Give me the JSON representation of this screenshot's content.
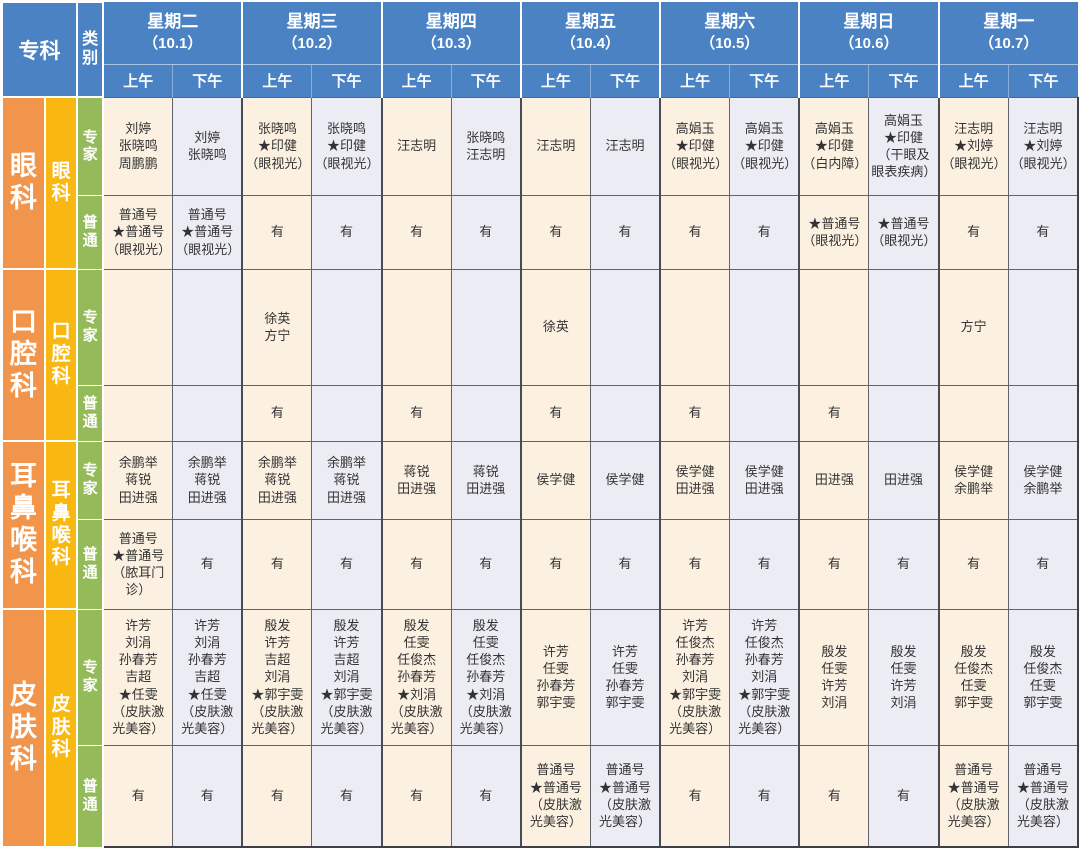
{
  "header": {
    "specialty_label": "专科",
    "category_label": "类别",
    "am_label": "上午",
    "pm_label": "下午",
    "days": [
      {
        "name": "星期二",
        "date": "（10.1）"
      },
      {
        "name": "星期三",
        "date": "（10.2）"
      },
      {
        "name": "星期四",
        "date": "（10.3）"
      },
      {
        "name": "星期五",
        "date": "（10.4）"
      },
      {
        "name": "星期六",
        "date": "（10.5）"
      },
      {
        "name": "星期日",
        "date": "（10.6）"
      },
      {
        "name": "星期一",
        "date": "（10.7）"
      }
    ]
  },
  "sections": [
    {
      "name": "眼科",
      "rows": [
        {
          "category": "专家",
          "cells": [
            "刘婷\n张晓鸣\n周鹏鹏",
            "刘婷\n张晓鸣",
            "张晓鸣\n★印健\n（眼视光）",
            "张晓鸣\n★印健\n（眼视光）",
            "汪志明",
            "张晓鸣\n汪志明",
            "汪志明",
            "汪志明",
            "高娟玉\n★印健\n（眼视光）",
            "高娟玉\n★印健\n（眼视光）",
            "高娟玉\n★印健\n（白内障）",
            "高娟玉\n★印健\n（干眼及眼表疾病）",
            "汪志明\n★刘婷\n（眼视光）",
            "汪志明\n★刘婷\n（眼视光）"
          ]
        },
        {
          "category": "普通",
          "cells": [
            "普通号\n★普通号\n（眼视光）",
            "普通号\n★普通号\n（眼视光）",
            "有",
            "有",
            "有",
            "有",
            "有",
            "有",
            "有",
            "有",
            "★普通号\n（眼视光）",
            "★普通号\n（眼视光）",
            "有",
            "有"
          ]
        }
      ]
    },
    {
      "name": "口腔科",
      "rows": [
        {
          "category": "专家",
          "cells": [
            "",
            "",
            "徐英\n方宁",
            "",
            "",
            "",
            "徐英",
            "",
            "",
            "",
            "",
            "",
            "方宁",
            ""
          ]
        },
        {
          "category": "普通",
          "cells": [
            "",
            "",
            "有",
            "",
            "有",
            "",
            "有",
            "",
            "有",
            "",
            "有",
            "",
            "",
            ""
          ]
        }
      ]
    },
    {
      "name": "耳鼻喉科",
      "rows": [
        {
          "category": "专家",
          "cells": [
            "余鹏举\n蒋锐\n田进强",
            "余鹏举\n蒋锐\n田进强",
            "余鹏举\n蒋锐\n田进强",
            "余鹏举\n蒋锐\n田进强",
            "蒋锐\n田进强",
            "蒋锐\n田进强",
            "侯学健",
            "侯学健",
            "侯学健\n田进强",
            "侯学健\n田进强",
            "田进强",
            "田进强",
            "侯学健\n余鹏举",
            "侯学健\n余鹏举"
          ]
        },
        {
          "category": "普通",
          "cells": [
            "普通号\n★普通号\n（脓耳门诊）",
            "有",
            "有",
            "有",
            "有",
            "有",
            "有",
            "有",
            "有",
            "有",
            "有",
            "有",
            "有",
            "有"
          ]
        }
      ]
    },
    {
      "name": "皮肤科",
      "rows": [
        {
          "category": "专家",
          "cells": [
            "许芳\n刘涓\n孙春芳\n吉超\n★任雯\n（皮肤激光美容）",
            "许芳\n刘涓\n孙春芳\n吉超\n★任雯\n（皮肤激光美容）",
            "殷发\n许芳\n吉超\n刘涓\n★郭宇雯\n（皮肤激光美容）",
            "殷发\n许芳\n吉超\n刘涓\n★郭宇雯\n（皮肤激光美容）",
            "殷发\n任雯\n任俊杰\n孙春芳\n★刘涓\n（皮肤激光美容）",
            "殷发\n任雯\n任俊杰\n孙春芳\n★刘涓\n（皮肤激光美容）",
            "许芳\n任雯\n孙春芳\n郭宇雯",
            "许芳\n任雯\n孙春芳\n郭宇雯",
            "许芳\n任俊杰\n孙春芳\n刘涓\n★郭宇雯\n（皮肤激光美容）",
            "许芳\n任俊杰\n孙春芳\n刘涓\n★郭宇雯\n（皮肤激光美容）",
            "殷发\n任雯\n许芳\n刘涓",
            "殷发\n任雯\n许芳\n刘涓",
            "殷发\n任俊杰\n任雯\n郭宇雯",
            "殷发\n任俊杰\n任雯\n郭宇雯"
          ]
        },
        {
          "category": "普通",
          "cells": [
            "有",
            "有",
            "有",
            "有",
            "有",
            "有",
            "普通号\n★普通号\n（皮肤激光美容）",
            "普通号\n★普通号\n（皮肤激光美容）",
            "有",
            "有",
            "有",
            "有",
            "普通号\n★普通号\n（皮肤激光美容）",
            "普通号\n★普通号\n（皮肤激光美容）"
          ]
        }
      ]
    }
  ],
  "colors": {
    "header_blue": "#4a82c4",
    "specialty_orange": "#f1944c",
    "specialty_yellow": "#f9b712",
    "category_green": "#95ba5a",
    "cell_am_cream": "#fcf1e1",
    "cell_pm_lavender": "#ececf4",
    "grid_line": "#4b4b54",
    "header_text": "#ffffff",
    "cell_text": "#333333"
  }
}
